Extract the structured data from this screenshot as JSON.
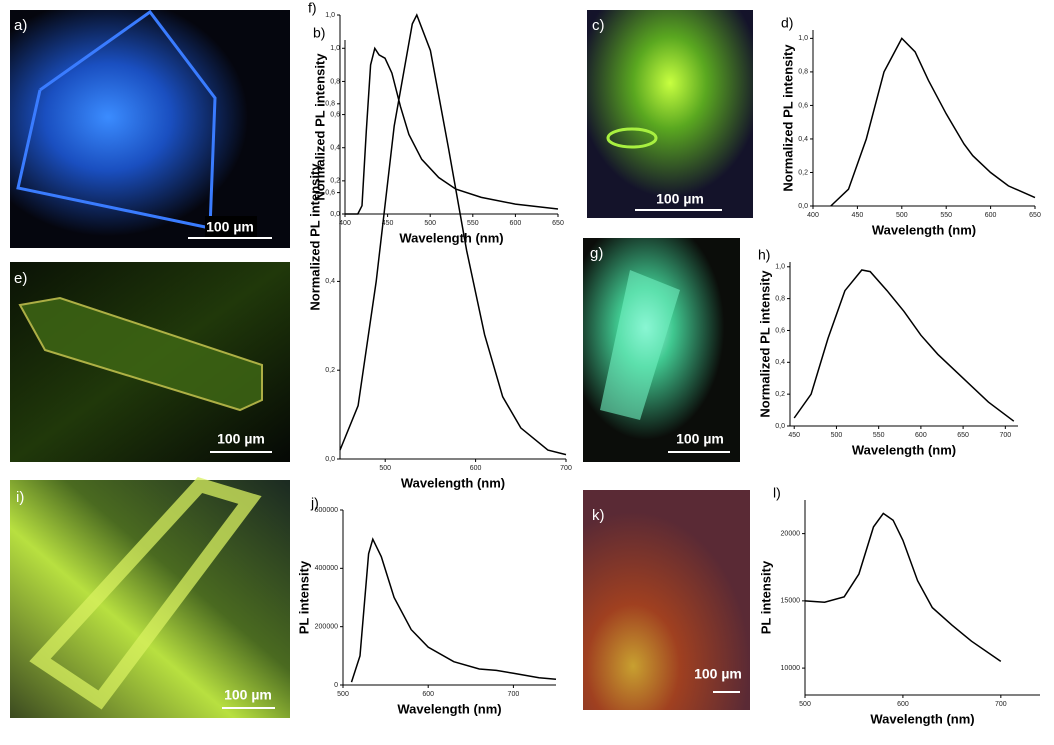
{
  "images": [
    {
      "label": "a)",
      "scale_bar": "100 µm"
    },
    {
      "label": "c)",
      "scale_bar": "100 µm"
    },
    {
      "label": "e)",
      "scale_bar": "100 µm"
    },
    {
      "label": "g)",
      "scale_bar": "100 µm"
    },
    {
      "label": "i)",
      "scale_bar": "100 µm"
    },
    {
      "label": "k)",
      "scale_bar": "100 µm"
    }
  ],
  "chart_data": [
    {
      "type": "line",
      "panel_label": "b)",
      "xlabel": "Wavelength (nm)",
      "ylabel": "Normalized PL intensity",
      "color": "#000000",
      "x": [
        400,
        415,
        420,
        425,
        430,
        435,
        440,
        447,
        455,
        465,
        475,
        490,
        510,
        530,
        560,
        600,
        650
      ],
      "values": [
        0,
        0,
        0.05,
        0.5,
        0.9,
        1.0,
        0.96,
        0.94,
        0.85,
        0.65,
        0.48,
        0.33,
        0.22,
        0.15,
        0.1,
        0.06,
        0.03
      ],
      "xlim": [
        400,
        650
      ],
      "xticks": [
        400,
        450,
        500,
        550,
        600,
        650
      ],
      "ylim": [
        0,
        1.05
      ],
      "yticks": [
        {
          "value": 0,
          "label": "0,0"
        },
        {
          "value": 0.2,
          "label": "0,2"
        },
        {
          "value": 0.4,
          "label": "0,4"
        },
        {
          "value": 0.6,
          "label": "0,6"
        },
        {
          "value": 0.8,
          "label": "0,8"
        },
        {
          "value": 1.0,
          "label": "1,0"
        }
      ]
    },
    {
      "type": "line",
      "panel_label": "d)",
      "xlabel": "Wavelength (nm)",
      "ylabel": "Normalized PL intensity",
      "color": "#000000",
      "x": [
        420,
        440,
        460,
        480,
        500,
        515,
        530,
        550,
        570,
        580,
        600,
        620,
        650
      ],
      "values": [
        0,
        0.1,
        0.4,
        0.8,
        1.0,
        0.92,
        0.75,
        0.55,
        0.37,
        0.3,
        0.2,
        0.12,
        0.05
      ],
      "xlim": [
        400,
        650
      ],
      "xticks": [
        400,
        450,
        500,
        550,
        600,
        650
      ],
      "ylim": [
        0,
        1.05
      ],
      "yticks": [
        {
          "value": 0,
          "label": "0,0"
        },
        {
          "value": 0.2,
          "label": "0,2"
        },
        {
          "value": 0.4,
          "label": "0,4"
        },
        {
          "value": 0.6,
          "label": "0,6"
        },
        {
          "value": 0.8,
          "label": "0,8"
        },
        {
          "value": 1.0,
          "label": "1,0"
        }
      ]
    },
    {
      "type": "line",
      "panel_label": "f)",
      "xlabel": "Wavelength (nm)",
      "ylabel": "Normalized PL intensity",
      "color": "#000000",
      "x": [
        450,
        470,
        490,
        510,
        530,
        535,
        550,
        570,
        590,
        610,
        630,
        650,
        680,
        700
      ],
      "values": [
        0.02,
        0.12,
        0.4,
        0.75,
        0.98,
        1.0,
        0.92,
        0.7,
        0.47,
        0.28,
        0.14,
        0.07,
        0.02,
        0.01
      ],
      "xlim": [
        450,
        700
      ],
      "xticks": [
        500,
        600,
        700
      ],
      "ylim": [
        0,
        1.0
      ],
      "yticks": [
        {
          "value": 0,
          "label": "0,0"
        },
        {
          "value": 0.2,
          "label": "0,2"
        },
        {
          "value": 0.4,
          "label": "0,4"
        },
        {
          "value": 0.6,
          "label": "0,6"
        },
        {
          "value": 0.8,
          "label": "0,8"
        },
        {
          "value": 1.0,
          "label": "1,0"
        }
      ]
    },
    {
      "type": "line",
      "panel_label": "h)",
      "xlabel": "Wavelength (nm)",
      "ylabel": "Normalized PL intensity",
      "color": "#000000",
      "x": [
        450,
        470,
        490,
        510,
        530,
        540,
        560,
        580,
        600,
        620,
        650,
        680,
        710
      ],
      "values": [
        0.05,
        0.2,
        0.55,
        0.85,
        0.98,
        0.97,
        0.85,
        0.72,
        0.57,
        0.45,
        0.3,
        0.15,
        0.03
      ],
      "xlim": [
        445,
        715
      ],
      "xticks": [
        450,
        500,
        550,
        600,
        650,
        700
      ],
      "ylim": [
        0,
        1.03
      ],
      "yticks": [
        {
          "value": 0,
          "label": "0,0"
        },
        {
          "value": 0.2,
          "label": "0,2"
        },
        {
          "value": 0.4,
          "label": "0,4"
        },
        {
          "value": 0.6,
          "label": "0,6"
        },
        {
          "value": 0.8,
          "label": "0,8"
        },
        {
          "value": 1.0,
          "label": "1,0"
        }
      ]
    },
    {
      "type": "line",
      "panel_label": "j)",
      "xlabel": "Wavelength (nm)",
      "ylabel": "PL intensity",
      "color": "#000000",
      "x": [
        510,
        520,
        530,
        535,
        545,
        560,
        580,
        600,
        630,
        660,
        680,
        700,
        730,
        750
      ],
      "values": [
        10000,
        100000,
        450000,
        500000,
        440000,
        300000,
        190000,
        130000,
        80000,
        55000,
        50000,
        40000,
        25000,
        20000
      ],
      "xlim": [
        500,
        750
      ],
      "xticks": [
        500,
        600,
        700
      ],
      "ylim": [
        0,
        600000
      ],
      "yticks": [
        0,
        200000,
        400000,
        600000
      ]
    },
    {
      "type": "line",
      "panel_label": "l)",
      "xlabel": "Wavelength (nm)",
      "ylabel": "PL intensity",
      "color": "#000000",
      "x": [
        500,
        520,
        540,
        555,
        570,
        580,
        590,
        600,
        615,
        630,
        650,
        670,
        700
      ],
      "values": [
        15000,
        14900,
        15300,
        17000,
        20500,
        21500,
        21000,
        19500,
        16500,
        14500,
        13200,
        12000,
        10500
      ],
      "xlim": [
        500,
        740
      ],
      "xticks": [
        500,
        600,
        700
      ],
      "ylim": [
        8000,
        22500
      ],
      "yticks": [
        10000,
        15000,
        20000
      ]
    }
  ]
}
